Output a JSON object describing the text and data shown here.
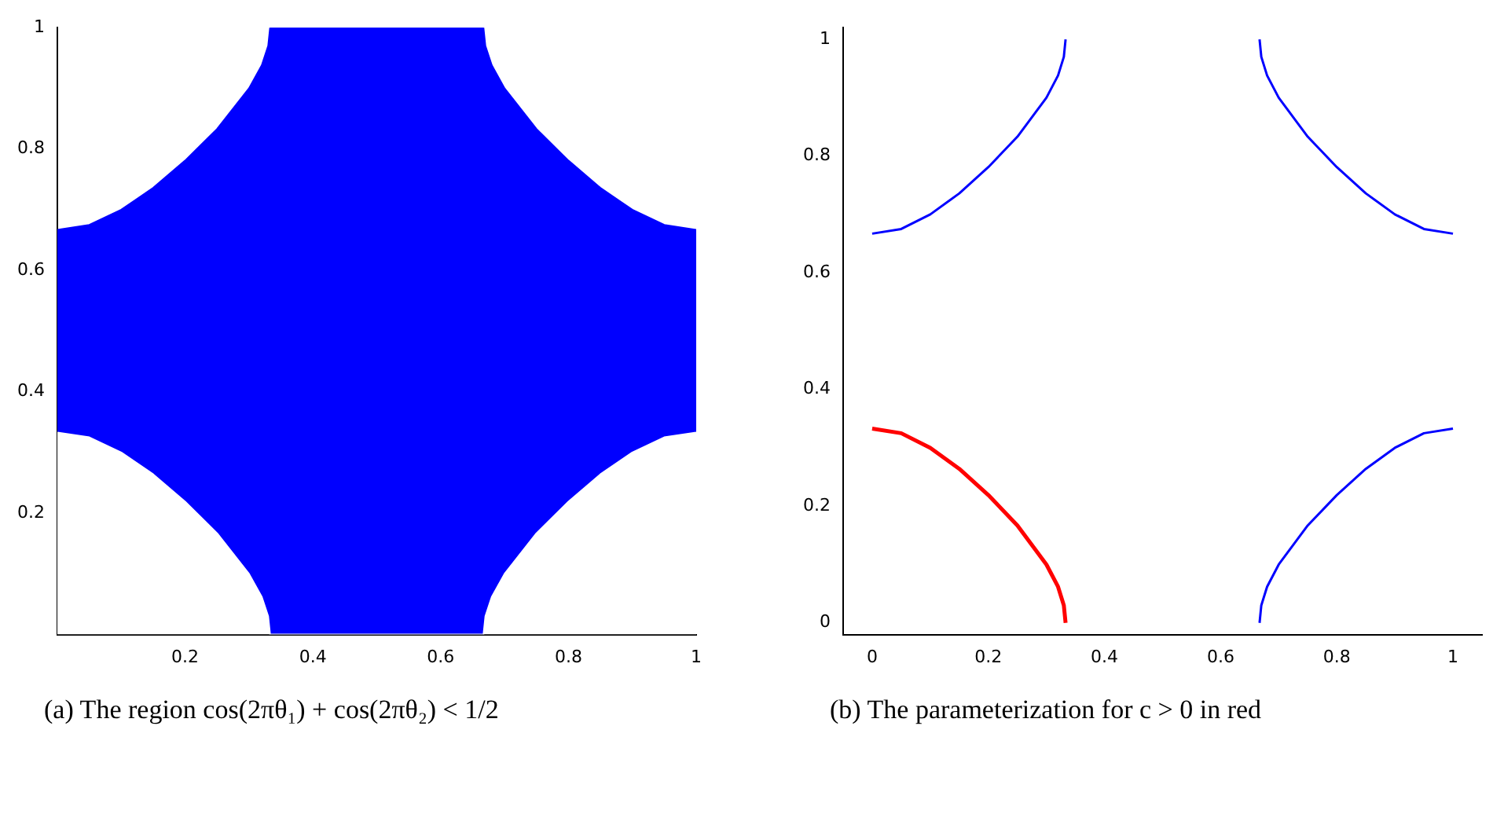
{
  "chart_data": [
    {
      "type": "area",
      "stacked": true,
      "xlim": [
        0,
        1
      ],
      "ylim": [
        0,
        1
      ],
      "xticks": [
        0.2,
        0.4,
        0.6,
        0.8,
        1
      ],
      "yticks": [
        0.2,
        0.4,
        0.6,
        0.8,
        1
      ],
      "grid": false,
      "marker": "none",
      "annotations": [
        "(a) The region cos(2πθ₁) + cos(2πθ₂) < 1/2"
      ],
      "x": [
        0,
        0.05,
        0.1,
        0.15,
        0.2,
        0.25,
        0.3,
        0.32,
        0.33,
        0.333,
        0.667,
        0.67,
        0.68,
        0.7,
        0.75,
        0.8,
        0.85,
        0.9,
        0.95,
        1
      ],
      "series": [
        {
          "color": "#ffffff",
          "values": [
            0.333,
            0.325,
            0.3,
            0.264,
            0.219,
            0.167,
            0.1,
            0.062,
            0.03,
            0,
            0,
            0.03,
            0.062,
            0.1,
            0.167,
            0.219,
            0.264,
            0.3,
            0.325,
            0.333
          ]
        },
        {
          "color": "#0000ff",
          "values": [
            0.334,
            0.35,
            0.4,
            0.472,
            0.562,
            0.666,
            0.8,
            0.876,
            0.94,
            1,
            1,
            0.94,
            0.876,
            0.8,
            0.666,
            0.562,
            0.472,
            0.4,
            0.35,
            0.334
          ]
        }
      ]
    },
    {
      "type": "line",
      "xlim": [
        -0.05,
        1.05
      ],
      "ylim": [
        -0.02,
        1.02
      ],
      "xticks": [
        0,
        0.2,
        0.4,
        0.6,
        0.8,
        1
      ],
      "yticks": [
        0,
        0.2,
        0.4,
        0.6,
        0.8,
        1
      ],
      "grid": false,
      "marker": "none",
      "line_style": "solid",
      "annotations": [
        "(b) The parameterization for c > 0 in red"
      ],
      "series": [
        {
          "color": "#ff0000",
          "x": [
            0,
            0.05,
            0.1,
            0.15,
            0.2,
            0.25,
            0.3,
            0.32,
            0.33,
            0.333
          ],
          "values": [
            0.333,
            0.325,
            0.3,
            0.264,
            0.219,
            0.167,
            0.1,
            0.062,
            0.03,
            0
          ]
        },
        {
          "color": "#0000ff",
          "x": [
            0,
            0.05,
            0.1,
            0.15,
            0.2,
            0.25,
            0.3,
            0.32,
            0.33,
            0.333
          ],
          "values": [
            0.667,
            0.675,
            0.7,
            0.736,
            0.781,
            0.833,
            0.9,
            0.938,
            0.97,
            1
          ]
        },
        {
          "color": "#0000ff",
          "x": [
            0.667,
            0.67,
            0.68,
            0.7,
            0.75,
            0.8,
            0.85,
            0.9,
            0.95,
            1
          ],
          "values": [
            1,
            0.97,
            0.938,
            0.9,
            0.833,
            0.781,
            0.736,
            0.7,
            0.675,
            0.667
          ]
        },
        {
          "color": "#0000ff",
          "x": [
            0.667,
            0.67,
            0.68,
            0.7,
            0.75,
            0.8,
            0.85,
            0.9,
            0.95,
            1
          ],
          "values": [
            0,
            0.03,
            0.062,
            0.1,
            0.167,
            0.219,
            0.264,
            0.3,
            0.325,
            0.333
          ]
        }
      ]
    }
  ]
}
